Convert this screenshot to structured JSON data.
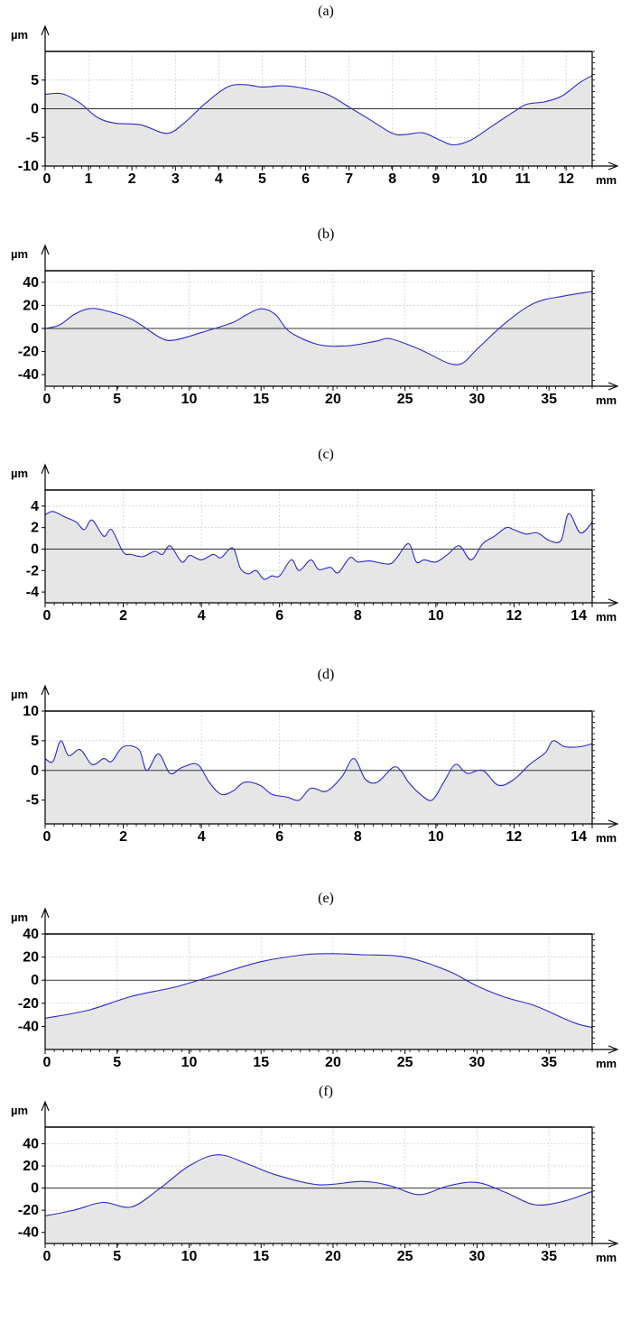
{
  "chart_data": [
    {
      "type": "area",
      "caption": "(a)",
      "ylabel": "µm",
      "xlabel": "mm",
      "xlim": [
        0,
        12.6
      ],
      "ylim": [
        -10,
        10
      ],
      "x_ticks": [
        "0",
        "1",
        "2",
        "3",
        "4",
        "5",
        "6",
        "7",
        "8",
        "9",
        "10",
        "11",
        "12"
      ],
      "y_ticks": [
        "5",
        "0",
        "-5",
        "-10"
      ],
      "grid": true,
      "points": [
        [
          0,
          2.5
        ],
        [
          0.4,
          2.6
        ],
        [
          0.8,
          1
        ],
        [
          1.2,
          -1.5
        ],
        [
          1.6,
          -2.5
        ],
        [
          2.2,
          -2.8
        ],
        [
          2.8,
          -4.3
        ],
        [
          3.2,
          -2.5
        ],
        [
          3.7,
          1
        ],
        [
          4.2,
          3.8
        ],
        [
          4.6,
          4.2
        ],
        [
          5,
          3.8
        ],
        [
          5.5,
          4
        ],
        [
          6,
          3.5
        ],
        [
          6.5,
          2.5
        ],
        [
          7,
          0.3
        ],
        [
          7.5,
          -2
        ],
        [
          8,
          -4.3
        ],
        [
          8.3,
          -4.5
        ],
        [
          8.7,
          -4.2
        ],
        [
          9.1,
          -5.5
        ],
        [
          9.4,
          -6.3
        ],
        [
          9.8,
          -5.5
        ],
        [
          10.3,
          -3
        ],
        [
          10.8,
          -0.5
        ],
        [
          11.1,
          0.8
        ],
        [
          11.5,
          1.2
        ],
        [
          11.9,
          2.2
        ],
        [
          12.3,
          4.5
        ],
        [
          12.6,
          5.8
        ]
      ],
      "series_color": "#2a2ad0",
      "fill_color": "#e6e6e6"
    },
    {
      "type": "area",
      "caption": "(b)",
      "ylabel": "µm",
      "xlabel": "mm",
      "xlim": [
        0,
        38
      ],
      "ylim": [
        -50,
        50
      ],
      "x_ticks": [
        "0",
        "5",
        "10",
        "15",
        "20",
        "25",
        "30",
        "35"
      ],
      "y_ticks": [
        "40",
        "20",
        "0",
        "-20",
        "-40"
      ],
      "grid": true,
      "points": [
        [
          0,
          0
        ],
        [
          1,
          3
        ],
        [
          2,
          12
        ],
        [
          3,
          17
        ],
        [
          4,
          16
        ],
        [
          6,
          8
        ],
        [
          8,
          -8
        ],
        [
          9,
          -10
        ],
        [
          11,
          -3
        ],
        [
          13,
          5
        ],
        [
          14,
          12
        ],
        [
          15,
          17
        ],
        [
          16,
          12
        ],
        [
          17,
          -3
        ],
        [
          19,
          -14
        ],
        [
          21,
          -15
        ],
        [
          23,
          -11
        ],
        [
          24,
          -9
        ],
        [
          26,
          -18
        ],
        [
          28,
          -30
        ],
        [
          29,
          -30
        ],
        [
          30,
          -18
        ],
        [
          32,
          5
        ],
        [
          34,
          22
        ],
        [
          36,
          28
        ],
        [
          38,
          32
        ]
      ],
      "series_color": "#2a2ad0",
      "fill_color": "#e6e6e6"
    },
    {
      "type": "area",
      "caption": "(c)",
      "ylabel": "µm",
      "xlabel": "mm",
      "xlim": [
        0,
        14
      ],
      "ylim": [
        -5,
        5.5
      ],
      "x_ticks": [
        "0",
        "2",
        "4",
        "6",
        "8",
        "10",
        "12",
        "14"
      ],
      "y_ticks": [
        "4",
        "2",
        "0",
        "-2",
        "-4"
      ],
      "grid": true,
      "points": [
        [
          0,
          3.2
        ],
        [
          0.2,
          3.5
        ],
        [
          0.5,
          3
        ],
        [
          0.8,
          2.5
        ],
        [
          1,
          1.8
        ],
        [
          1.2,
          2.7
        ],
        [
          1.5,
          1.2
        ],
        [
          1.7,
          1.8
        ],
        [
          2,
          -0.3
        ],
        [
          2.2,
          -0.5
        ],
        [
          2.5,
          -0.7
        ],
        [
          2.8,
          -0.2
        ],
        [
          3,
          -0.5
        ],
        [
          3.2,
          0.3
        ],
        [
          3.5,
          -1.2
        ],
        [
          3.7,
          -0.6
        ],
        [
          4,
          -1
        ],
        [
          4.3,
          -0.5
        ],
        [
          4.5,
          -0.8
        ],
        [
          4.8,
          0.1
        ],
        [
          5,
          -1.8
        ],
        [
          5.2,
          -2.3
        ],
        [
          5.4,
          -2
        ],
        [
          5.6,
          -2.8
        ],
        [
          5.8,
          -2.5
        ],
        [
          6,
          -2.5
        ],
        [
          6.3,
          -1
        ],
        [
          6.5,
          -2
        ],
        [
          6.8,
          -1
        ],
        [
          7,
          -1.9
        ],
        [
          7.3,
          -1.7
        ],
        [
          7.5,
          -2.2
        ],
        [
          7.8,
          -0.8
        ],
        [
          8,
          -1.2
        ],
        [
          8.3,
          -1.1
        ],
        [
          8.8,
          -1.4
        ],
        [
          9,
          -0.8
        ],
        [
          9.3,
          0.5
        ],
        [
          9.5,
          -1.2
        ],
        [
          9.7,
          -1
        ],
        [
          10,
          -1.2
        ],
        [
          10.3,
          -0.5
        ],
        [
          10.6,
          0.3
        ],
        [
          10.9,
          -1
        ],
        [
          11.2,
          0.5
        ],
        [
          11.5,
          1.2
        ],
        [
          11.8,
          2
        ],
        [
          12,
          1.8
        ],
        [
          12.3,
          1.4
        ],
        [
          12.6,
          1.5
        ],
        [
          12.9,
          0.8
        ],
        [
          13.2,
          0.8
        ],
        [
          13.4,
          3.3
        ],
        [
          13.7,
          1.5
        ],
        [
          14,
          2.5
        ]
      ],
      "series_color": "#2a2ad0",
      "fill_color": "#e6e6e6"
    },
    {
      "type": "area",
      "caption": "(d)",
      "ylabel": "µm",
      "xlabel": "mm",
      "xlim": [
        0,
        14
      ],
      "ylim": [
        -9,
        10
      ],
      "x_ticks": [
        "0",
        "2",
        "4",
        "6",
        "8",
        "10",
        "12",
        "14"
      ],
      "y_ticks": [
        "10",
        "5",
        "0",
        "-5"
      ],
      "grid": true,
      "points": [
        [
          0,
          2
        ],
        [
          0.2,
          1.5
        ],
        [
          0.4,
          5
        ],
        [
          0.6,
          2.5
        ],
        [
          0.9,
          3.5
        ],
        [
          1.2,
          1
        ],
        [
          1.5,
          2
        ],
        [
          1.7,
          1.5
        ],
        [
          2,
          4
        ],
        [
          2.4,
          3.5
        ],
        [
          2.6,
          0
        ],
        [
          2.9,
          2.8
        ],
        [
          3.2,
          -0.5
        ],
        [
          3.5,
          0.5
        ],
        [
          3.9,
          1
        ],
        [
          4.2,
          -2
        ],
        [
          4.5,
          -4
        ],
        [
          4.8,
          -3.5
        ],
        [
          5.1,
          -2
        ],
        [
          5.5,
          -2.5
        ],
        [
          5.8,
          -4
        ],
        [
          6.2,
          -4.5
        ],
        [
          6.5,
          -5
        ],
        [
          6.8,
          -3
        ],
        [
          7.2,
          -3.5
        ],
        [
          7.6,
          -1
        ],
        [
          7.9,
          2
        ],
        [
          8.2,
          -1.5
        ],
        [
          8.5,
          -2
        ],
        [
          8.9,
          0.5
        ],
        [
          9.1,
          0
        ],
        [
          9.3,
          -2
        ],
        [
          9.6,
          -4
        ],
        [
          9.9,
          -5
        ],
        [
          10.2,
          -2
        ],
        [
          10.5,
          1
        ],
        [
          10.8,
          -0.5
        ],
        [
          11.2,
          0
        ],
        [
          11.6,
          -2.5
        ],
        [
          12,
          -1.5
        ],
        [
          12.4,
          1
        ],
        [
          12.8,
          3
        ],
        [
          13,
          5
        ],
        [
          13.3,
          4
        ],
        [
          13.7,
          4
        ],
        [
          14,
          4.5
        ]
      ],
      "series_color": "#2a2ad0",
      "fill_color": "#e6e6e6"
    },
    {
      "type": "area",
      "caption": "(e)",
      "ylabel": "µm",
      "xlabel": "mm",
      "xlim": [
        0,
        38
      ],
      "ylim": [
        -60,
        40
      ],
      "x_ticks": [
        "0",
        "5",
        "10",
        "15",
        "20",
        "25",
        "30",
        "35"
      ],
      "y_ticks": [
        "40",
        "20",
        "0",
        "-20",
        "-40"
      ],
      "grid": true,
      "points": [
        [
          0,
          -33
        ],
        [
          3,
          -26
        ],
        [
          6,
          -14
        ],
        [
          9,
          -6
        ],
        [
          12,
          5
        ],
        [
          15,
          16
        ],
        [
          18,
          22
        ],
        [
          20,
          23
        ],
        [
          22,
          22
        ],
        [
          25,
          20
        ],
        [
          28,
          8
        ],
        [
          30,
          -5
        ],
        [
          32,
          -15
        ],
        [
          34,
          -22
        ],
        [
          36,
          -33
        ],
        [
          37,
          -38
        ],
        [
          38,
          -41
        ]
      ],
      "series_color": "#2a2ad0",
      "fill_color": "#e6e6e6"
    },
    {
      "type": "area",
      "caption": "(f)",
      "ylabel": "µm",
      "xlabel": "mm",
      "xlim": [
        0,
        38
      ],
      "ylim": [
        -50,
        55
      ],
      "x_ticks": [
        "0",
        "5",
        "10",
        "15",
        "20",
        "25",
        "30",
        "35"
      ],
      "y_ticks": [
        "40",
        "20",
        "0",
        "-20",
        "-40"
      ],
      "grid": true,
      "points": [
        [
          0,
          -25
        ],
        [
          2,
          -20
        ],
        [
          4,
          -13
        ],
        [
          6,
          -17
        ],
        [
          8,
          0
        ],
        [
          10,
          20
        ],
        [
          12,
          30
        ],
        [
          14,
          22
        ],
        [
          16,
          12
        ],
        [
          19,
          3
        ],
        [
          22,
          6
        ],
        [
          24,
          2
        ],
        [
          26,
          -6
        ],
        [
          28,
          2
        ],
        [
          30,
          5
        ],
        [
          32,
          -4
        ],
        [
          34,
          -15
        ],
        [
          36,
          -12
        ],
        [
          38,
          -3
        ]
      ],
      "series_color": "#2a2ad0",
      "fill_color": "#e6e6e6"
    }
  ]
}
